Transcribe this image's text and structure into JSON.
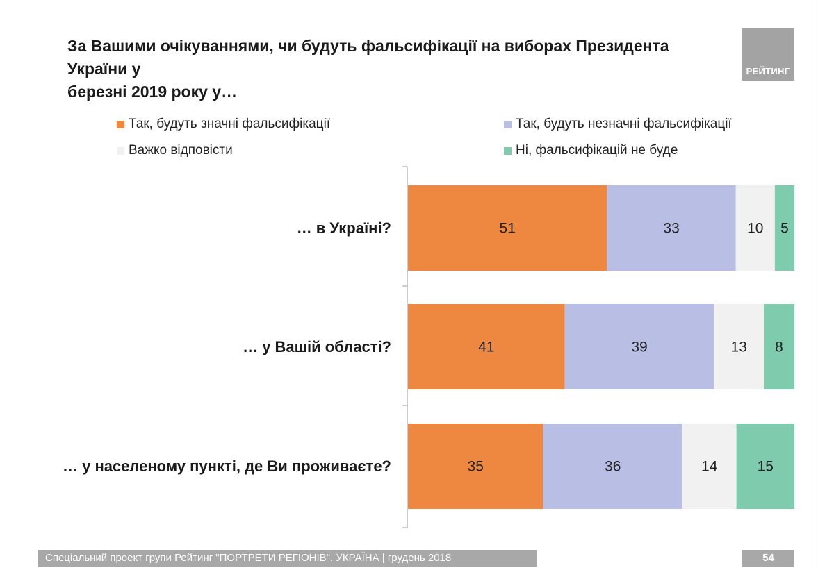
{
  "header": {
    "title_line1": "За Вашими очікуваннями, чи будуть фальсифікації на виборах Президента України у",
    "title_line2": "березні 2019 року у…",
    "logo_text": "РЕЙТИНГ"
  },
  "footer": {
    "text": "Спеціальний проект групи Рейтинг \"ПОРТРЕТИ РЕГІОНІВ\". УКРАЇНА | грудень 2018",
    "page_number": "54"
  },
  "colors": {
    "significant": "#ee8740",
    "insignificant": "#b9bfe4",
    "hard_to_say": "#f1f1f1",
    "none": "#7fcbae"
  },
  "chart_data": {
    "type": "bar",
    "orientation": "horizontal",
    "stacked": true,
    "title": "За Вашими очікуваннями, чи будуть фальсифікації на виборах Президента України у березні 2019 року у…",
    "categories": [
      "… в Україні?",
      "… у Вашій області?",
      "… у населеному пункті, де Ви проживаєте?"
    ],
    "series": [
      {
        "name": "Так, будуть значні фальсифікації",
        "color": "#ee8740",
        "values": [
          51,
          41,
          35
        ]
      },
      {
        "name": "Так, будуть незначні фальсифікації",
        "color": "#b9bfe4",
        "values": [
          33,
          39,
          36
        ]
      },
      {
        "name": "Важко відповісти",
        "color": "#f1f1f1",
        "values": [
          10,
          13,
          14
        ]
      },
      {
        "name": "Ні, фальсифікацій не буде",
        "color": "#7fcbae",
        "values": [
          5,
          8,
          15
        ]
      }
    ],
    "xlim": [
      0,
      100
    ],
    "legend_position": "top",
    "units": "%"
  }
}
